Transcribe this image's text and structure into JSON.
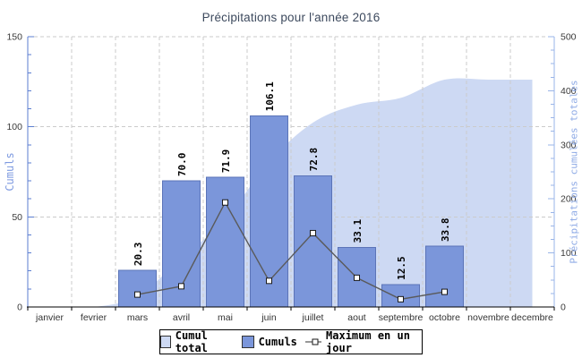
{
  "chart_data": {
    "type": "combo",
    "title": "Précipitations pour l'année 2016",
    "categories": [
      "janvier",
      "fevrier",
      "mars",
      "avril",
      "mai",
      "juin",
      "juillet",
      "aout",
      "septembre",
      "octobre",
      "novembre",
      "decembre"
    ],
    "left_axis": {
      "title": "Cumuls",
      "min": 0,
      "max": 150,
      "major_ticks": [
        0,
        50,
        100,
        150
      ],
      "minor_step": 10
    },
    "right_axis": {
      "title": "Précipitations cumulées totales",
      "min": 0,
      "max": 500,
      "major_ticks": [
        0,
        100,
        200,
        300,
        400,
        500
      ],
      "minor_step": 25
    },
    "grid": true,
    "legend_position": "bottom",
    "series": [
      {
        "name": "Cumul total",
        "type": "area",
        "axis": "right",
        "values": [
          0,
          0,
          20.3,
          90.3,
          162.2,
          268.3,
          341.1,
          374.2,
          386.7,
          420.5,
          420.5,
          420.5
        ]
      },
      {
        "name": "Cumuls",
        "type": "bar",
        "axis": "left",
        "show_value_labels": true,
        "values": [
          null,
          null,
          20.3,
          70.0,
          71.9,
          106.1,
          72.8,
          33.1,
          12.5,
          33.8,
          null,
          null
        ]
      },
      {
        "name": "Maximum en un jour",
        "type": "line",
        "axis": "left",
        "values": [
          null,
          null,
          6.9,
          11.5,
          58.0,
          14.5,
          41.0,
          16.2,
          4.3,
          8.4,
          null,
          null
        ]
      }
    ]
  },
  "colors": {
    "area_fill": "#cdd9f3",
    "bar_fill": "#7b96da",
    "bar_border": "#5b74b8",
    "line": "#5a5a5a",
    "marker_fill": "#ffffff",
    "marker_border": "#1a1a1a",
    "grid": "#cbcbcb",
    "left_axis": "#5b7ed0",
    "right_axis": "#9ab5e8",
    "x_axis": "#000000",
    "tick_text": "#3a3a3a",
    "month_text": "#333333",
    "bar_label_text": "#000000"
  }
}
